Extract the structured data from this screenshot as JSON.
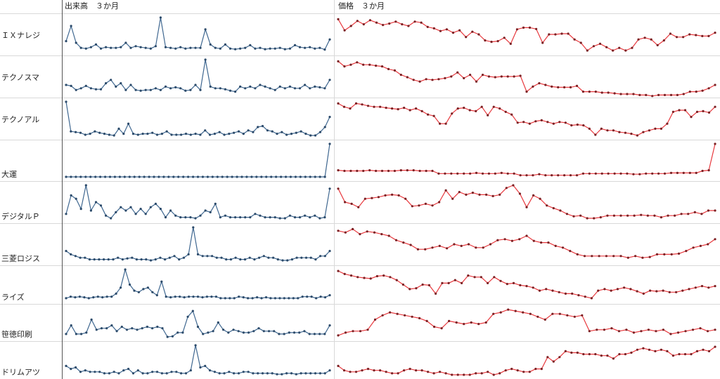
{
  "headers": {
    "volume": "出来高　３か月",
    "price": "価格　３か月"
  },
  "colors": {
    "volume": "#3f6790",
    "price": "#e8393e",
    "grid": "#d9d9d9",
    "axis": "#555555"
  },
  "chart_data": {
    "type": "line",
    "subtype": "sparkline-grid",
    "columns": [
      "出来高　３か月",
      "価格　３か月"
    ],
    "rows": [
      {
        "label": "ＩＸナレジ",
        "volume": [
          0.3,
          0.75,
          0.25,
          0.1,
          0.08,
          0.12,
          0.2,
          0.08,
          0.12,
          0.1,
          0.1,
          0.12,
          0.25,
          0.1,
          0.15,
          0.12,
          0.1,
          0.08,
          0.15,
          1.0,
          0.12,
          0.1,
          0.08,
          0.12,
          0.08,
          0.1,
          0.1,
          0.1,
          0.65,
          0.2,
          0.1,
          0.08,
          0.2,
          0.08,
          0.06,
          0.08,
          0.1,
          0.18,
          0.08,
          0.1,
          0.06,
          0.08,
          0.08,
          0.1,
          0.06,
          0.08,
          0.18,
          0.12,
          0.1,
          0.12,
          0.08,
          0.1,
          0.05,
          0.35
        ],
        "price": [
          0.95,
          0.62,
          0.75,
          0.9,
          0.8,
          0.92,
          0.85,
          0.78,
          0.82,
          0.88,
          0.8,
          0.75,
          0.88,
          0.85,
          0.72,
          0.68,
          0.6,
          0.65,
          0.55,
          0.62,
          0.42,
          0.58,
          0.5,
          0.32,
          0.28,
          0.3,
          0.4,
          0.22,
          0.65,
          0.7,
          0.7,
          0.66,
          0.25,
          0.5,
          0.5,
          0.52,
          0.52,
          0.35,
          0.25,
          0.02,
          0.15,
          0.22,
          0.12,
          0.02,
          0.1,
          0.02,
          0.1,
          0.35,
          0.4,
          0.35,
          0.18,
          0.32,
          0.52,
          0.42,
          0.42,
          0.5,
          0.48,
          0.45,
          0.45,
          0.55
        ]
      },
      {
        "label": "テクノスマ",
        "volume": [
          0.25,
          0.22,
          0.1,
          0.15,
          0.22,
          0.15,
          0.12,
          0.12,
          0.3,
          0.4,
          0.2,
          0.3,
          0.1,
          0.25,
          0.1,
          0.08,
          0.1,
          0.1,
          0.15,
          0.1,
          0.2,
          0.15,
          0.18,
          0.15,
          0.08,
          0.1,
          0.25,
          0.1,
          1.0,
          0.2,
          0.15,
          0.15,
          0.12,
          0.08,
          0.05,
          0.2,
          0.15,
          0.2,
          0.15,
          0.25,
          0.2,
          0.15,
          0.1,
          0.2,
          0.15,
          0.2,
          0.15,
          0.15,
          0.25,
          0.15,
          0.2,
          0.18,
          0.15,
          0.4
        ],
        "price": [
          0.95,
          0.8,
          0.85,
          0.92,
          0.85,
          0.85,
          0.82,
          0.8,
          0.72,
          0.68,
          0.55,
          0.48,
          0.4,
          0.35,
          0.42,
          0.4,
          0.42,
          0.45,
          0.5,
          0.62,
          0.45,
          0.55,
          0.35,
          0.55,
          0.5,
          0.48,
          0.5,
          0.5,
          0.5,
          0.52,
          0.05,
          0.2,
          0.3,
          0.25,
          0.2,
          0.18,
          0.18,
          0.18,
          0.22,
          0.05,
          0.05,
          0.05,
          0.02,
          0.02,
          0.0,
          -0.02,
          -0.02,
          -0.02,
          -0.05,
          -0.05,
          -0.08,
          -0.05,
          -0.05,
          -0.05,
          -0.05,
          -0.02,
          0.05,
          0.05,
          0.08,
          0.15,
          0.25
        ]
      },
      {
        "label": "テクノアル",
        "volume": [
          1.0,
          0.12,
          0.1,
          0.08,
          0.02,
          0.05,
          0.12,
          0.08,
          0.05,
          0.02,
          0.0,
          0.2,
          0.05,
          0.35,
          0.05,
          0.02,
          0.05,
          0.05,
          0.08,
          0.02,
          0.05,
          0.12,
          0.02,
          0.02,
          0.02,
          0.05,
          0.02,
          0.05,
          0.02,
          0.15,
          0.02,
          0.05,
          0.1,
          0.02,
          0.05,
          0.08,
          0.12,
          0.05,
          0.15,
          0.1,
          0.25,
          0.28,
          0.15,
          0.12,
          0.05,
          0.1,
          0.02,
          0.05,
          0.08,
          0.12,
          0.05,
          0.0,
          0.0,
          0.1,
          0.25,
          0.55
        ],
        "price": [
          0.95,
          0.85,
          0.8,
          0.95,
          0.92,
          0.88,
          0.85,
          0.85,
          0.82,
          0.8,
          0.78,
          0.82,
          0.75,
          0.8,
          0.72,
          0.62,
          0.58,
          0.35,
          0.35,
          0.65,
          0.8,
          0.82,
          0.75,
          0.72,
          0.85,
          0.6,
          0.85,
          0.8,
          0.7,
          0.62,
          0.38,
          0.4,
          0.35,
          0.42,
          0.45,
          0.4,
          0.35,
          0.4,
          0.38,
          0.3,
          0.32,
          0.3,
          0.2,
          0.02,
          0.2,
          0.15,
          0.15,
          0.1,
          0.08,
          0.05,
          0.0,
          0.1,
          0.15,
          0.2,
          0.2,
          0.35,
          0.7,
          0.75,
          0.75,
          0.55,
          0.7,
          0.72,
          0.68,
          0.85
        ]
      },
      {
        "label": "大運",
        "volume": [
          0.0,
          0.0,
          0.0,
          0.0,
          0.0,
          0.0,
          0.0,
          0.0,
          0.0,
          0.0,
          0.0,
          0.0,
          0.0,
          0.0,
          0.0,
          0.0,
          0.0,
          0.0,
          0.0,
          0.0,
          0.0,
          0.0,
          0.0,
          0.0,
          0.0,
          0.0,
          0.0,
          0.0,
          0.0,
          0.0,
          0.0,
          0.0,
          0.0,
          0.0,
          0.0,
          0.0,
          0.0,
          0.0,
          0.0,
          0.0,
          0.0,
          0.0,
          0.0,
          0.0,
          0.0,
          0.0,
          0.0,
          0.0,
          0.0,
          0.0,
          0.0,
          0.0,
          0.0,
          0.0,
          1.0
        ],
        "price": [
          0.2,
          0.18,
          0.18,
          0.18,
          0.18,
          0.2,
          0.18,
          0.18,
          0.18,
          0.18,
          0.2,
          0.2,
          0.2,
          0.18,
          0.18,
          0.18,
          0.1,
          0.1,
          0.1,
          0.1,
          0.1,
          0.1,
          0.12,
          0.1,
          0.1,
          0.1,
          0.12,
          0.1,
          0.1,
          0.05,
          0.05,
          0.05,
          0.08,
          0.05,
          0.05,
          0.05,
          0.05,
          0.05,
          0.05,
          0.1,
          0.1,
          0.1,
          0.1,
          0.1,
          0.1,
          0.1,
          0.1,
          0.08,
          0.08,
          0.1,
          0.1,
          0.1,
          0.1,
          0.12,
          0.12,
          0.12,
          0.12,
          0.12,
          0.18,
          0.2,
          1.0
        ]
      },
      {
        "label": "デジタルＰ",
        "volume": [
          0.15,
          0.7,
          0.6,
          0.3,
          1.0,
          0.25,
          0.5,
          0.4,
          0.1,
          0.02,
          0.2,
          0.35,
          0.25,
          0.35,
          0.15,
          0.3,
          0.15,
          0.35,
          0.45,
          0.3,
          0.05,
          0.25,
          0.1,
          0.05,
          0.05,
          0.05,
          0.02,
          0.1,
          0.25,
          0.2,
          0.45,
          0.05,
          0.1,
          0.05,
          0.05,
          0.05,
          0.05,
          0.05,
          0.15,
          0.1,
          0.05,
          0.05,
          0.05,
          0.02,
          0.02,
          0.1,
          0.05,
          0.05,
          0.1,
          0.05,
          0.1,
          0.02,
          0.05,
          0.9
        ],
        "price": [
          0.9,
          0.5,
          0.45,
          0.35,
          0.6,
          0.62,
          0.65,
          0.7,
          0.72,
          0.7,
          0.6,
          0.38,
          0.4,
          0.45,
          0.4,
          0.5,
          0.85,
          0.6,
          0.8,
          0.72,
          0.78,
          0.72,
          0.72,
          0.68,
          0.72,
          0.92,
          1.0,
          0.75,
          0.35,
          0.7,
          0.6,
          0.4,
          0.32,
          0.25,
          0.15,
          0.08,
          0.1,
          0.02,
          0.02,
          0.05,
          0.1,
          0.1,
          0.1,
          0.1,
          0.1,
          0.12,
          0.1,
          0.1,
          0.05,
          0.1,
          0.1,
          0.15,
          0.15,
          0.2,
          0.15,
          0.25,
          0.25
        ]
      },
      {
        "label": "三菱ロジス",
        "volume": [
          0.3,
          0.2,
          0.15,
          0.1,
          0.1,
          0.05,
          0.05,
          0.05,
          0.05,
          0.05,
          0.05,
          0.1,
          0.05,
          0.08,
          0.1,
          0.05,
          0.05,
          0.05,
          0.02,
          0.05,
          0.1,
          0.05,
          0.1,
          0.15,
          0.05,
          0.1,
          0.2,
          1.0,
          0.2,
          0.15,
          0.15,
          0.15,
          0.1,
          0.1,
          0.05,
          0.05,
          0.1,
          0.05,
          0.05,
          0.1,
          0.05,
          0.1,
          0.15,
          0.1,
          0.1,
          0.05,
          0.02,
          0.02,
          0.05,
          0.1,
          0.1,
          0.1,
          0.1,
          0.05,
          0.15,
          0.15,
          0.3
        ],
        "price": [
          0.9,
          0.85,
          0.95,
          0.8,
          0.88,
          0.85,
          0.8,
          0.75,
          0.62,
          0.55,
          0.48,
          0.35,
          0.35,
          0.4,
          0.45,
          0.38,
          0.5,
          0.45,
          0.5,
          0.4,
          0.4,
          0.5,
          0.62,
          0.65,
          0.6,
          0.65,
          0.75,
          0.6,
          0.55,
          0.55,
          0.45,
          0.4,
          0.3,
          0.2,
          0.15,
          0.15,
          0.15,
          0.15,
          0.15,
          0.15,
          0.1,
          0.15,
          0.1,
          0.12,
          0.2,
          0.2,
          0.2,
          0.22,
          0.3,
          0.4,
          0.45,
          0.5,
          0.65
        ]
      },
      {
        "label": "ライズ",
        "volume": [
          0.05,
          0.1,
          0.08,
          0.1,
          0.08,
          0.05,
          0.08,
          0.1,
          0.08,
          0.1,
          0.1,
          0.2,
          0.4,
          1.0,
          0.5,
          0.3,
          0.25,
          0.35,
          0.4,
          0.25,
          0.15,
          0.6,
          0.1,
          0.08,
          0.1,
          0.1,
          0.08,
          0.1,
          0.1,
          0.1,
          0.08,
          0.1,
          0.1,
          0.1,
          0.05,
          0.05,
          0.05,
          0.05,
          0.1,
          0.08,
          0.05,
          0.05,
          0.08,
          0.05,
          0.08,
          0.05,
          0.05,
          0.05,
          0.05,
          0.05,
          0.05,
          0.05,
          0.1,
          0.1,
          0.1,
          0.05,
          0.1,
          0.08,
          0.15
        ],
        "price": [
          0.95,
          0.85,
          0.8,
          0.75,
          0.72,
          0.7,
          0.78,
          0.8,
          0.75,
          0.65,
          0.5,
          0.35,
          0.38,
          0.5,
          0.48,
          0.2,
          0.55,
          0.55,
          0.65,
          0.55,
          0.8,
          0.75,
          0.75,
          0.55,
          0.75,
          0.62,
          0.52,
          0.55,
          0.48,
          0.45,
          0.4,
          0.3,
          0.35,
          0.3,
          0.25,
          0.2,
          0.2,
          0.15,
          0.1,
          0.05,
          0.3,
          0.35,
          0.3,
          0.35,
          0.4,
          0.35,
          0.28,
          0.2,
          0.3,
          0.28,
          0.3,
          0.25,
          0.25,
          0.3,
          0.35,
          0.4,
          0.45,
          0.4,
          0.45
        ]
      },
      {
        "label": "笹徳印刷",
        "volume": [
          0.1,
          0.4,
          0.1,
          0.1,
          0.15,
          0.6,
          0.25,
          0.3,
          0.3,
          0.4,
          0.2,
          0.35,
          0.25,
          0.3,
          0.25,
          0.3,
          0.35,
          0.3,
          0.35,
          0.3,
          0.0,
          0.02,
          0.15,
          0.15,
          0.7,
          0.9,
          0.35,
          0.1,
          0.15,
          0.2,
          0.5,
          0.25,
          0.15,
          0.25,
          0.2,
          0.15,
          0.15,
          0.2,
          0.3,
          0.2,
          0.2,
          0.2,
          0.1,
          0.1,
          0.15,
          0.15,
          0.15,
          0.2,
          0.1,
          0.1,
          0.1,
          0.1,
          0.4
        ],
        "price": [
          0.05,
          0.15,
          0.2,
          0.2,
          0.25,
          0.6,
          0.75,
          0.85,
          0.8,
          0.75,
          0.7,
          0.65,
          0.55,
          0.35,
          0.3,
          0.55,
          0.5,
          0.45,
          0.5,
          0.45,
          0.5,
          0.8,
          0.85,
          0.95,
          0.9,
          0.85,
          0.8,
          0.7,
          0.6,
          0.8,
          0.8,
          0.75,
          0.7,
          0.75,
          0.2,
          0.25,
          0.25,
          0.3,
          0.2,
          0.25,
          0.15,
          0.2,
          0.25,
          0.2,
          0.25,
          0.1,
          0.15,
          0.2,
          0.25,
          0.3,
          0.2,
          0.25
        ]
      },
      {
        "label": "ドリムアツ",
        "volume": [
          0.3,
          0.2,
          0.25,
          0.1,
          0.15,
          0.1,
          0.1,
          0.1,
          0.05,
          0.05,
          0.1,
          0.05,
          0.15,
          0.2,
          0.05,
          0.15,
          0.05,
          0.05,
          0.1,
          0.1,
          0.05,
          0.05,
          0.1,
          0.1,
          0.05,
          0.05,
          0.15,
          1.0,
          0.25,
          0.3,
          0.15,
          0.1,
          0.05,
          0.05,
          0.1,
          0.05,
          0.05,
          0.1,
          0.1,
          0.05,
          0.05,
          0.05,
          0.05,
          0.05,
          0.02,
          0.02,
          0.05,
          0.05,
          0.02,
          0.05,
          0.05,
          0.05,
          0.05,
          0.05,
          0.05,
          0.15
        ],
        "price": [
          0.3,
          0.15,
          0.1,
          0.1,
          0.15,
          0.2,
          0.15,
          0.15,
          0.1,
          0.05,
          0.05,
          0.15,
          0.2,
          0.15,
          0.15,
          0.1,
          0.05,
          0.1,
          0.05,
          0.0,
          0.0,
          0.0,
          0.0,
          0.05,
          0.05,
          0.1,
          0.0,
          0.05,
          0.15,
          0.2,
          0.15,
          0.1,
          0.1,
          0.2,
          0.2,
          0.6,
          0.45,
          0.6,
          0.8,
          0.75,
          0.75,
          0.7,
          0.7,
          0.7,
          0.65,
          0.65,
          0.55,
          0.7,
          0.7,
          0.75,
          0.85,
          0.9,
          0.85,
          0.8,
          0.85,
          0.8,
          0.65,
          0.7,
          0.7,
          0.7,
          0.8,
          0.85,
          0.8,
          0.95
        ]
      }
    ]
  }
}
